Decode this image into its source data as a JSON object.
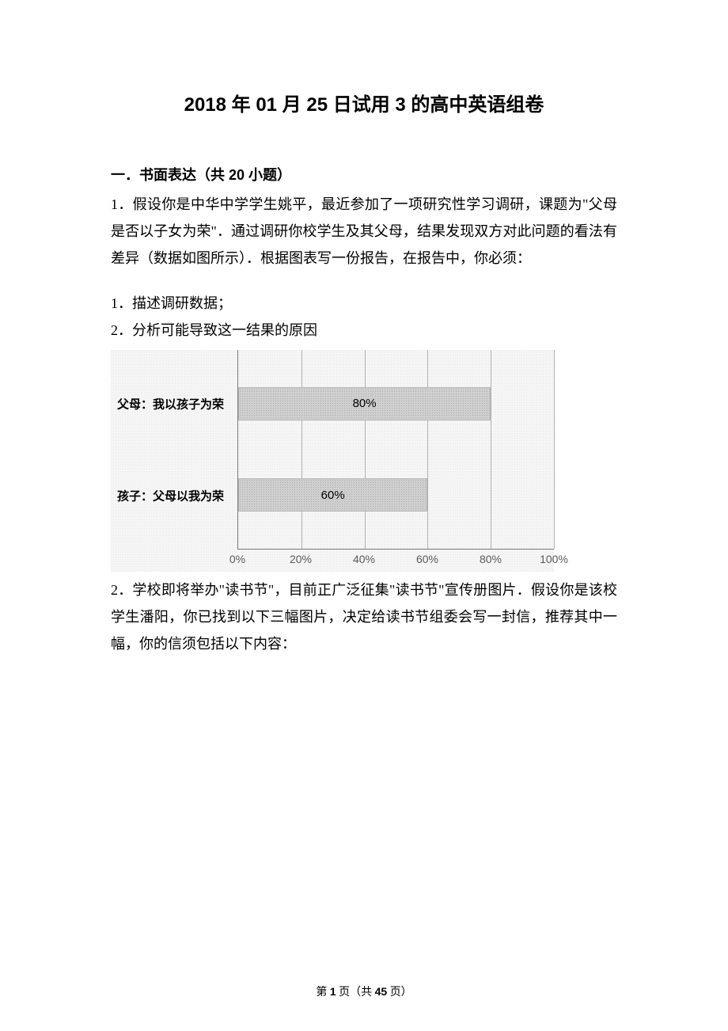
{
  "title": "2018 年 01 月 25 日试用 3 的高中英语组卷",
  "section_header": "一．书面表达（共 20 小题）",
  "q1_text": "1．假设你是中华中学学生姚平，最近参加了一项研究性学习调研，课题为\"父母是否以子女为荣\"．通过调研你校学生及其父母，结果发现双方对此问题的看法有差异（数据如图所示）．根据图表写一份报告，在报告中，你必须：",
  "q1_item1": "1．描述调研数据；",
  "q1_item2": "2．分析可能导致这一结果的原因",
  "chart": {
    "type": "bar-horizontal",
    "background_color": "#f7f6f7",
    "axis_color": "#7a7a7a",
    "grid_color": "rgba(120,120,120,0.55)",
    "bar_fill": "#cfcfcf",
    "bar_texture": "dotted",
    "xlim": [
      0,
      100
    ],
    "xtick_step": 20,
    "xticks": [
      "0%",
      "20%",
      "40%",
      "60%",
      "80%",
      "100%"
    ],
    "font_axis": 14,
    "font_bar_label": 15,
    "bars": [
      {
        "category": "父母：我以孩子为荣",
        "value": 80,
        "display": "80%",
        "y_pct": 27
      },
      {
        "category": "孩子：父母以我为荣",
        "value": 60,
        "display": "60%",
        "y_pct": 73
      }
    ]
  },
  "q2_text": "2．学校即将举办\"读书节\"，目前正广泛征集\"读书节\"宣传册图片．假设你是该校学生潘阳，你已找到以下三幅图片，决定给读书节组委会写一封信，推荐其中一幅，你的信须包括以下内容：",
  "footer": {
    "prefix": "第 ",
    "page_current": "1",
    "mid": " 页（共 ",
    "page_total": "45",
    "suffix": " 页）"
  }
}
